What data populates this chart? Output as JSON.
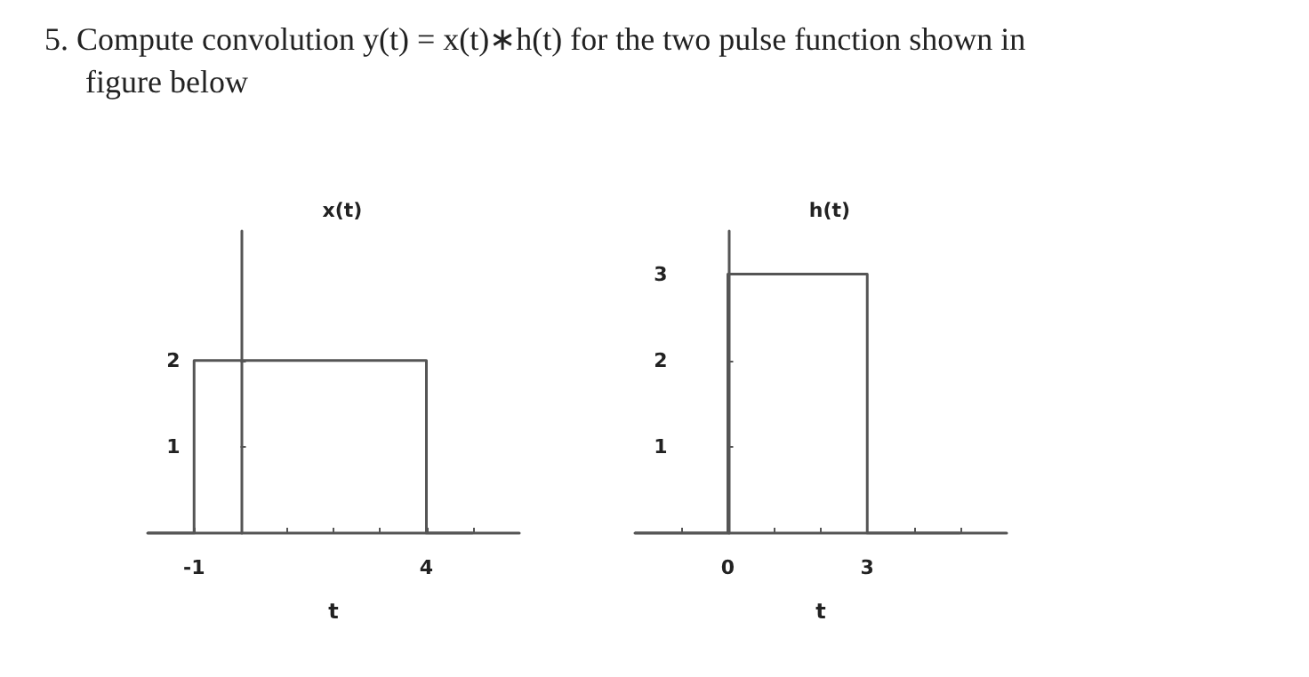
{
  "chart_data": [
    {
      "type": "line",
      "title": "x(t)",
      "xlabel": "t",
      "annotations": [
        "5. Compute convolution y(t) = x(t)∗h(t) for the two pulse function shown in figure below"
      ],
      "x": [
        -2,
        -1,
        -1,
        4,
        4,
        5
      ],
      "series": [
        {
          "color": "#555555",
          "values": [
            0,
            0,
            2,
            2,
            0,
            0
          ]
        }
      ],
      "xlim": [
        -2,
        6
      ],
      "ylim": [
        0,
        3.5
      ],
      "xticks": [
        -1,
        {
          "value": 1,
          "label": null
        },
        {
          "value": 2,
          "label": null
        },
        {
          "value": 3,
          "label": null
        },
        4,
        {
          "value": 5,
          "label": null
        }
      ],
      "yticks": [
        1,
        2
      ],
      "marker": "none"
    },
    {
      "type": "line",
      "title": "h(t)",
      "xlabel": "t",
      "x": [
        -2,
        0,
        0,
        3,
        3,
        5
      ],
      "series": [
        {
          "color": "#555555",
          "values": [
            0,
            0,
            3,
            3,
            0,
            0
          ]
        }
      ],
      "xlim": [
        -2,
        6
      ],
      "ylim": [
        0,
        3.5
      ],
      "xticks": [
        {
          "value": -1,
          "label": null
        },
        0,
        {
          "value": 1,
          "label": null
        },
        {
          "value": 2,
          "label": null
        },
        3,
        {
          "value": 4,
          "label": null
        },
        {
          "value": 5,
          "label": null
        }
      ],
      "yticks": [
        1,
        2,
        3
      ],
      "marker": "none"
    }
  ]
}
